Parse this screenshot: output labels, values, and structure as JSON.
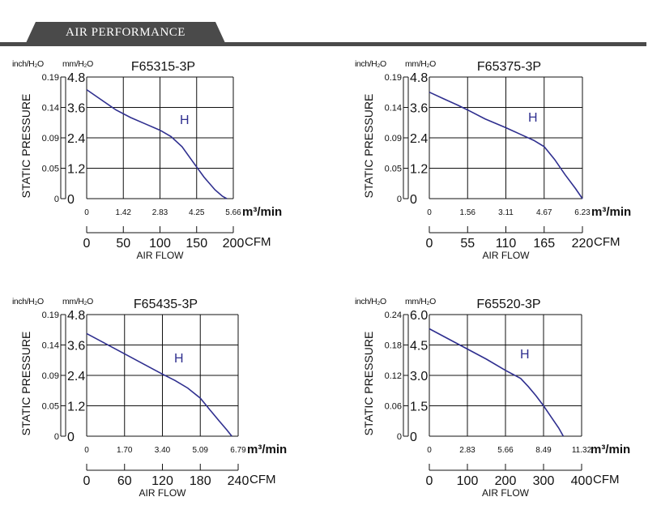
{
  "header": {
    "title": "AIR PERFORMANCE"
  },
  "chart_data": [
    {
      "type": "line",
      "title": "F65315-3P",
      "ylabel": "STATIC PRESSURE",
      "xlabel": "AIR FLOW",
      "y_unit_inch": "inch/H₂O",
      "y_unit_mm": "mm/H₂O",
      "x_unit_m3": "m³/min",
      "x_unit_cfm": "CFM",
      "y_ticks_inch": [
        "0",
        "0.05",
        "0.09",
        "0.14",
        "0.19"
      ],
      "y_ticks_mm": [
        "0",
        "1.2",
        "2.4",
        "3.6",
        "4.8"
      ],
      "x_ticks_m3": [
        "0",
        "1.42",
        "2.83",
        "4.25",
        "5.66"
      ],
      "x_ticks_cfm": [
        "0",
        "50",
        "100",
        "150",
        "200"
      ],
      "xlim": [
        0,
        200
      ],
      "ylim": [
        0,
        4.8
      ],
      "grid": true,
      "series": [
        {
          "name": "H",
          "x": [
            0,
            20,
            40,
            60,
            80,
            100,
            115,
            130,
            145,
            160,
            175,
            185,
            191
          ],
          "y": [
            4.3,
            3.9,
            3.5,
            3.2,
            2.95,
            2.7,
            2.45,
            2.05,
            1.45,
            0.85,
            0.35,
            0.1,
            0.0
          ]
        }
      ]
    },
    {
      "type": "line",
      "title": "F65375-3P",
      "ylabel": "STATIC PRESSURE",
      "xlabel": "AIR FLOW",
      "y_unit_inch": "inch/H₂O",
      "y_unit_mm": "mm/H₂O",
      "x_unit_m3": "m³/min",
      "x_unit_cfm": "CFM",
      "y_ticks_inch": [
        "0",
        "0.05",
        "0.09",
        "0.14",
        "0.19"
      ],
      "y_ticks_mm": [
        "0",
        "1.2",
        "2.4",
        "3.6",
        "4.8"
      ],
      "x_ticks_m3": [
        "0",
        "1.56",
        "3.11",
        "4.67",
        "6.23"
      ],
      "x_ticks_cfm": [
        "0",
        "55",
        "110",
        "165",
        "220"
      ],
      "xlim": [
        0,
        220
      ],
      "ylim": [
        0,
        4.8
      ],
      "grid": true,
      "series": [
        {
          "name": "H",
          "x": [
            0,
            20,
            40,
            55,
            80,
            110,
            130,
            150,
            165,
            180,
            195,
            210,
            220
          ],
          "y": [
            4.2,
            3.95,
            3.7,
            3.5,
            3.15,
            2.8,
            2.55,
            2.3,
            2.05,
            1.55,
            0.95,
            0.4,
            0.0
          ]
        }
      ]
    },
    {
      "type": "line",
      "title": "F65435-3P",
      "ylabel": "STATIC PRESSURE",
      "xlabel": "AIR FLOW",
      "y_unit_inch": "inch/H₂O",
      "y_unit_mm": "mm/H₂O",
      "x_unit_m3": "m³/min",
      "x_unit_cfm": "CFM",
      "y_ticks_inch": [
        "0",
        "0.05",
        "0.09",
        "0.14",
        "0.19"
      ],
      "y_ticks_mm": [
        "0",
        "1.2",
        "2.4",
        "3.6",
        "4.8"
      ],
      "x_ticks_m3": [
        "0",
        "1.70",
        "3.40",
        "5.09",
        "6.79"
      ],
      "x_ticks_cfm": [
        "0",
        "60",
        "120",
        "180",
        "240"
      ],
      "xlim": [
        0,
        240
      ],
      "ylim": [
        0,
        4.8
      ],
      "grid": true,
      "series": [
        {
          "name": "H",
          "x": [
            0,
            30,
            60,
            90,
            120,
            140,
            160,
            180,
            195,
            210,
            222,
            230
          ],
          "y": [
            4.05,
            3.65,
            3.25,
            2.85,
            2.45,
            2.2,
            1.9,
            1.5,
            1.05,
            0.6,
            0.25,
            0.0
          ]
        }
      ]
    },
    {
      "type": "line",
      "title": "F65520-3P",
      "ylabel": "STATIC PRESSURE",
      "xlabel": "AIR FLOW",
      "y_unit_inch": "inch/H₂O",
      "y_unit_mm": "mm/H₂O",
      "x_unit_m3": "m³/min",
      "x_unit_cfm": "CFM",
      "y_ticks_inch": [
        "0",
        "0.06",
        "0.12",
        "0.18",
        "0.24"
      ],
      "y_ticks_mm": [
        "0",
        "1.5",
        "3.0",
        "4.5",
        "6.0"
      ],
      "x_ticks_m3": [
        "0",
        "2.83",
        "5.66",
        "8.49",
        "11.32"
      ],
      "x_ticks_cfm": [
        "0",
        "100",
        "200",
        "300",
        "400"
      ],
      "xlim": [
        0,
        400
      ],
      "ylim": [
        0,
        6.0
      ],
      "grid": true,
      "series": [
        {
          "name": "H",
          "x": [
            0,
            50,
            100,
            150,
            200,
            240,
            260,
            280,
            300,
            320,
            340,
            352
          ],
          "y": [
            5.3,
            4.8,
            4.3,
            3.8,
            3.25,
            2.85,
            2.45,
            2.0,
            1.5,
            0.95,
            0.4,
            0.0
          ]
        }
      ]
    }
  ]
}
